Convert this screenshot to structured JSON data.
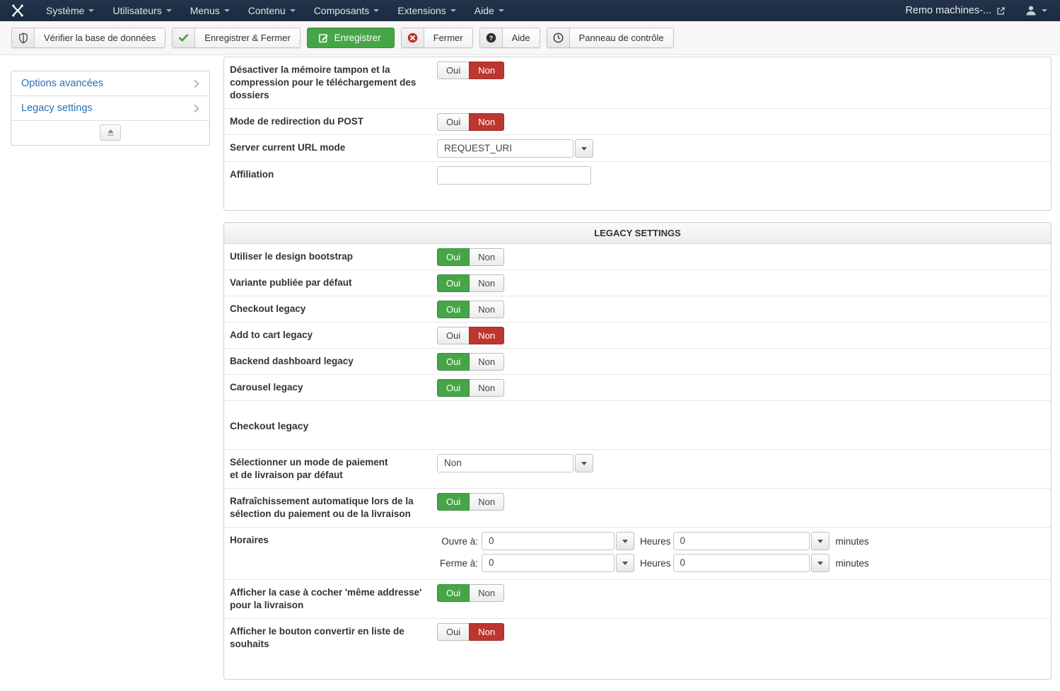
{
  "topbar": {
    "brand_icon": "joomla-logo",
    "menus": [
      {
        "key": "systeme",
        "label": "Système"
      },
      {
        "key": "utilisateurs",
        "label": "Utilisateurs"
      },
      {
        "key": "menus",
        "label": "Menus"
      },
      {
        "key": "contenu",
        "label": "Contenu"
      },
      {
        "key": "composants",
        "label": "Composants"
      },
      {
        "key": "extensions",
        "label": "Extensions"
      },
      {
        "key": "aide",
        "label": "Aide"
      }
    ],
    "site_link": {
      "label": "Remo machines-...",
      "icon": "external-link-icon"
    },
    "user_menu": {
      "icon": "user-icon"
    }
  },
  "toolbar": {
    "buttons": [
      {
        "key": "check-database",
        "label": "Vérifier la base de données",
        "icon": "shield-icon",
        "style": "default"
      },
      {
        "key": "save-close",
        "label": "Enregistrer & Fermer",
        "icon": "check-icon",
        "style": "default"
      },
      {
        "key": "save",
        "label": "Enregistrer",
        "icon": "edit-icon",
        "style": "success"
      },
      {
        "key": "close",
        "label": "Fermer",
        "icon": "close-icon",
        "style": "default"
      },
      {
        "key": "help",
        "label": "Aide",
        "icon": "question-icon",
        "style": "default"
      },
      {
        "key": "control-panel",
        "label": "Panneau de contrôle",
        "icon": "gauge-icon",
        "style": "default"
      }
    ]
  },
  "sidebar": {
    "items": [
      {
        "key": "options-avancees",
        "label": "Options avancées"
      },
      {
        "key": "legacy-settings",
        "label": "Legacy settings"
      }
    ],
    "collapse_icon": "collapse-up-icon"
  },
  "toggle_labels": {
    "yes": "Oui",
    "no": "Non"
  },
  "panels": [
    {
      "key": "advanced-options",
      "title": null,
      "rows": [
        {
          "type": "toggle",
          "key": "disable-buffer-compression",
          "label": "Désactiver la mémoire tampon et la\ncompression pour le téléchargement des\ndossiers",
          "value": "non"
        },
        {
          "type": "toggle",
          "key": "post-redirect-mode",
          "label": "Mode de redirection du POST",
          "value": "non"
        },
        {
          "type": "select",
          "key": "server-current-url-mode",
          "label": "Server current URL mode",
          "value": "REQUEST_URI"
        },
        {
          "type": "input",
          "key": "affiliation",
          "label": "Affiliation",
          "value": ""
        }
      ]
    },
    {
      "key": "legacy-settings",
      "title": "LEGACY SETTINGS",
      "rows": [
        {
          "type": "toggle",
          "key": "use-bootstrap-design",
          "label": "Utiliser le design bootstrap",
          "value": "oui"
        },
        {
          "type": "toggle",
          "key": "default-published-variant",
          "label": "Variante publiée par défaut",
          "value": "oui"
        },
        {
          "type": "toggle",
          "key": "checkout-legacy",
          "label": "Checkout legacy",
          "value": "oui"
        },
        {
          "type": "toggle",
          "key": "add-to-cart-legacy",
          "label": "Add to cart legacy",
          "value": "non"
        },
        {
          "type": "toggle",
          "key": "backend-dashboard-legacy",
          "label": "Backend dashboard legacy",
          "value": "oui"
        },
        {
          "type": "toggle",
          "key": "carousel-legacy",
          "label": "Carousel legacy",
          "value": "oui"
        },
        {
          "type": "heading",
          "key": "checkout-legacy-heading",
          "label": "Checkout legacy"
        },
        {
          "type": "select",
          "key": "default-payment-shipping",
          "label": "Sélectionner un mode de paiement\net de livraison par défaut",
          "value": "Non"
        },
        {
          "type": "toggle",
          "key": "auto-refresh-payment-shipping",
          "label": "Rafraîchissement automatique lors de la\nsélection du paiement ou de la livraison",
          "value": "oui"
        },
        {
          "type": "schedule",
          "key": "horaires",
          "label": "Horaires",
          "lines": [
            {
              "prefix": "Ouvre à:",
              "hours": "0",
              "hours_label": "Heures",
              "minutes": "0",
              "minutes_label": "minutes"
            },
            {
              "prefix": "Ferme à:",
              "hours": "0",
              "hours_label": "Heures",
              "minutes": "0",
              "minutes_label": "minutes"
            }
          ]
        },
        {
          "type": "toggle",
          "key": "same-address-checkbox",
          "label": "Afficher la case à cocher 'même addresse'\npour la livraison",
          "value": "oui"
        },
        {
          "type": "toggle",
          "key": "convert-wishlist-button",
          "label": "Afficher le bouton convertir en liste de\nsouhaits",
          "value": "non"
        }
      ]
    }
  ],
  "colors": {
    "accent_green": "#46a546",
    "accent_red": "#bd362f",
    "link_blue": "#2a6fb0",
    "topbar_navy": "#1b2b3f"
  }
}
